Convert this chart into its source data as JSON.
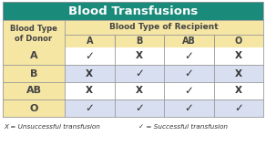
{
  "title": "Blood Transfusions",
  "title_bg": "#1a8a7a",
  "title_color": "white",
  "col_header_bg": "#f5e6a3",
  "col_header_color": "#444444",
  "row_header_bg": "#f5e6a3",
  "row_bg_even": "#ffffff",
  "row_bg_odd": "#d8dff0",
  "border_color": "#999999",
  "donor_label_line1": "Blood Type",
  "donor_label_line2": "of Donor",
  "recipient_label": "Blood Type of Recipient",
  "recipient_cols": [
    "A",
    "B",
    "AB",
    "O"
  ],
  "donor_rows": [
    "A",
    "B",
    "AB",
    "O"
  ],
  "table_data": [
    [
      "✓",
      "X",
      "✓",
      "X"
    ],
    [
      "X",
      "✓",
      "✓",
      "X"
    ],
    [
      "X",
      "X",
      "✓",
      "X"
    ],
    [
      "✓",
      "✓",
      "✓",
      "✓"
    ]
  ],
  "footnote_left": "X = Unsuccessful transfusion",
  "footnote_right": "✓ = Successful transfusion",
  "text_color": "#333333",
  "outer_border_color": "#888888"
}
